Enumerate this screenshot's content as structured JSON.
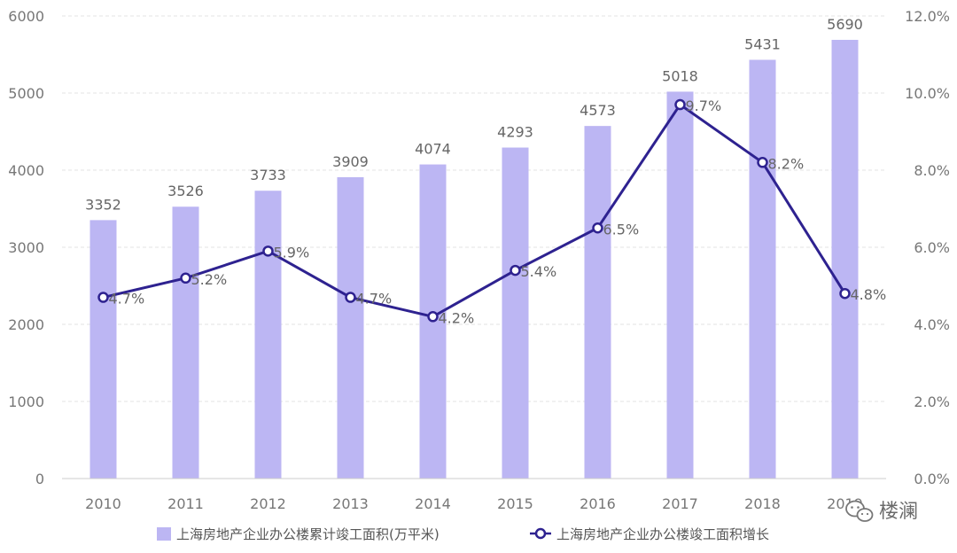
{
  "chart_data": {
    "type": "bar",
    "categories": [
      "2010",
      "2011",
      "2012",
      "2013",
      "2014",
      "2015",
      "2016",
      "2017",
      "2018",
      "2019"
    ],
    "series": [
      {
        "name": "上海房地产企业办公楼累计竣工面积(万平米)",
        "type": "bar",
        "axis": "left",
        "values": [
          3352,
          3526,
          3733,
          3909,
          4074,
          4293,
          4573,
          5018,
          5431,
          5690
        ],
        "labels": [
          "3352",
          "3526",
          "3733",
          "3909",
          "4074",
          "4293",
          "4573",
          "5018",
          "5431",
          "5690"
        ],
        "color": "#bcb6f3"
      },
      {
        "name": "上海房地产企业办公楼竣工面积增长",
        "type": "line",
        "axis": "right",
        "values": [
          4.7,
          5.2,
          5.9,
          4.7,
          4.2,
          5.4,
          6.5,
          9.7,
          8.2,
          4.8
        ],
        "labels": [
          "4.7%",
          "5.2%",
          "5.9%",
          "4.7%",
          "4.2%",
          "5.4%",
          "6.5%",
          "9.7%",
          "8.2%",
          "4.8%"
        ],
        "color": "#2e2290"
      }
    ],
    "y_left": {
      "min": 0,
      "max": 6000,
      "ticks": [
        "0",
        "1000",
        "2000",
        "3000",
        "4000",
        "5000",
        "6000"
      ]
    },
    "y_right": {
      "min": 0,
      "max": 12,
      "ticks": [
        "0.0%",
        "2.0%",
        "4.0%",
        "6.0%",
        "8.0%",
        "10.0%",
        "12.0%"
      ]
    },
    "grid": true,
    "legend": "bottom"
  },
  "watermark": {
    "text": "楼澜",
    "icon": "wechat-icon"
  }
}
